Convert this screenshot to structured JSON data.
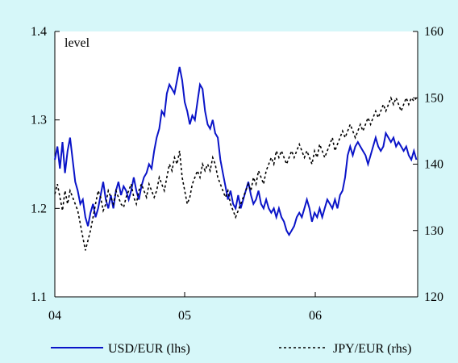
{
  "chart_data": {
    "type": "line",
    "unit_label": "level",
    "x_ticks": [
      "04",
      "05",
      "06"
    ],
    "y_left": {
      "min": 1.1,
      "max": 1.4,
      "ticks": [
        "1.1",
        "1.2",
        "1.3",
        "1.4"
      ]
    },
    "y_right": {
      "min": 120,
      "max": 160,
      "ticks": [
        "120",
        "130",
        "140",
        "150",
        "160"
      ]
    },
    "x_range": [
      2004.0,
      2006.85
    ],
    "grid": false,
    "legend_position": "bottom",
    "colors": {
      "background": "#d6f7f9",
      "plot": "#ffffff",
      "usd": "#0a14c8",
      "jpy": "#000000"
    },
    "series": [
      {
        "name": "USD/EUR (lhs)",
        "axis": "left",
        "style": "solid",
        "points": [
          [
            2004.0,
            1.255
          ],
          [
            2004.02,
            1.27
          ],
          [
            2004.04,
            1.245
          ],
          [
            2004.06,
            1.275
          ],
          [
            2004.08,
            1.24
          ],
          [
            2004.1,
            1.265
          ],
          [
            2004.12,
            1.28
          ],
          [
            2004.14,
            1.255
          ],
          [
            2004.16,
            1.23
          ],
          [
            2004.18,
            1.22
          ],
          [
            2004.2,
            1.205
          ],
          [
            2004.22,
            1.21
          ],
          [
            2004.24,
            1.19
          ],
          [
            2004.26,
            1.18
          ],
          [
            2004.28,
            1.195
          ],
          [
            2004.3,
            1.205
          ],
          [
            2004.32,
            1.19
          ],
          [
            2004.34,
            1.2
          ],
          [
            2004.36,
            1.215
          ],
          [
            2004.38,
            1.23
          ],
          [
            2004.4,
            1.21
          ],
          [
            2004.42,
            1.2
          ],
          [
            2004.44,
            1.215
          ],
          [
            2004.46,
            1.2
          ],
          [
            2004.48,
            1.22
          ],
          [
            2004.5,
            1.23
          ],
          [
            2004.52,
            1.215
          ],
          [
            2004.54,
            1.225
          ],
          [
            2004.56,
            1.22
          ],
          [
            2004.58,
            1.21
          ],
          [
            2004.6,
            1.22
          ],
          [
            2004.62,
            1.235
          ],
          [
            2004.64,
            1.22
          ],
          [
            2004.66,
            1.21
          ],
          [
            2004.68,
            1.225
          ],
          [
            2004.7,
            1.235
          ],
          [
            2004.72,
            1.24
          ],
          [
            2004.74,
            1.25
          ],
          [
            2004.76,
            1.245
          ],
          [
            2004.78,
            1.265
          ],
          [
            2004.8,
            1.28
          ],
          [
            2004.82,
            1.29
          ],
          [
            2004.84,
            1.31
          ],
          [
            2004.86,
            1.305
          ],
          [
            2004.88,
            1.33
          ],
          [
            2004.9,
            1.34
          ],
          [
            2004.92,
            1.335
          ],
          [
            2004.94,
            1.33
          ],
          [
            2004.96,
            1.345
          ],
          [
            2004.98,
            1.36
          ],
          [
            2005.0,
            1.345
          ],
          [
            2005.02,
            1.32
          ],
          [
            2005.04,
            1.31
          ],
          [
            2005.06,
            1.295
          ],
          [
            2005.08,
            1.305
          ],
          [
            2005.1,
            1.3
          ],
          [
            2005.12,
            1.32
          ],
          [
            2005.14,
            1.34
          ],
          [
            2005.16,
            1.335
          ],
          [
            2005.18,
            1.31
          ],
          [
            2005.2,
            1.295
          ],
          [
            2005.22,
            1.29
          ],
          [
            2005.24,
            1.3
          ],
          [
            2005.26,
            1.285
          ],
          [
            2005.28,
            1.28
          ],
          [
            2005.3,
            1.255
          ],
          [
            2005.32,
            1.24
          ],
          [
            2005.34,
            1.225
          ],
          [
            2005.36,
            1.21
          ],
          [
            2005.38,
            1.22
          ],
          [
            2005.4,
            1.205
          ],
          [
            2005.42,
            1.2
          ],
          [
            2005.44,
            1.215
          ],
          [
            2005.46,
            1.2
          ],
          [
            2005.48,
            1.21
          ],
          [
            2005.5,
            1.22
          ],
          [
            2005.52,
            1.23
          ],
          [
            2005.54,
            1.215
          ],
          [
            2005.56,
            1.205
          ],
          [
            2005.58,
            1.21
          ],
          [
            2005.6,
            1.22
          ],
          [
            2005.62,
            1.205
          ],
          [
            2005.64,
            1.2
          ],
          [
            2005.66,
            1.21
          ],
          [
            2005.68,
            1.2
          ],
          [
            2005.7,
            1.195
          ],
          [
            2005.72,
            1.2
          ],
          [
            2005.74,
            1.19
          ],
          [
            2005.76,
            1.2
          ],
          [
            2005.78,
            1.19
          ],
          [
            2005.8,
            1.185
          ],
          [
            2005.82,
            1.175
          ],
          [
            2005.84,
            1.17
          ],
          [
            2005.86,
            1.175
          ],
          [
            2005.88,
            1.18
          ],
          [
            2005.9,
            1.19
          ],
          [
            2005.92,
            1.195
          ],
          [
            2005.94,
            1.19
          ],
          [
            2005.96,
            1.2
          ],
          [
            2005.98,
            1.21
          ],
          [
            2006.0,
            1.2
          ],
          [
            2006.02,
            1.185
          ],
          [
            2006.04,
            1.195
          ],
          [
            2006.06,
            1.19
          ],
          [
            2006.08,
            1.2
          ],
          [
            2006.1,
            1.19
          ],
          [
            2006.12,
            1.2
          ],
          [
            2006.14,
            1.21
          ],
          [
            2006.16,
            1.205
          ],
          [
            2006.18,
            1.2
          ],
          [
            2006.2,
            1.21
          ],
          [
            2006.22,
            1.2
          ],
          [
            2006.24,
            1.215
          ],
          [
            2006.26,
            1.22
          ],
          [
            2006.28,
            1.235
          ],
          [
            2006.3,
            1.26
          ],
          [
            2006.32,
            1.27
          ],
          [
            2006.34,
            1.26
          ],
          [
            2006.36,
            1.27
          ],
          [
            2006.38,
            1.275
          ],
          [
            2006.4,
            1.27
          ],
          [
            2006.42,
            1.265
          ],
          [
            2006.44,
            1.26
          ],
          [
            2006.46,
            1.25
          ],
          [
            2006.48,
            1.26
          ],
          [
            2006.5,
            1.27
          ],
          [
            2006.52,
            1.28
          ],
          [
            2006.54,
            1.27
          ],
          [
            2006.56,
            1.265
          ],
          [
            2006.58,
            1.27
          ],
          [
            2006.6,
            1.285
          ],
          [
            2006.62,
            1.28
          ],
          [
            2006.64,
            1.275
          ],
          [
            2006.66,
            1.28
          ],
          [
            2006.68,
            1.27
          ],
          [
            2006.7,
            1.275
          ],
          [
            2006.72,
            1.27
          ],
          [
            2006.74,
            1.265
          ],
          [
            2006.76,
            1.27
          ],
          [
            2006.78,
            1.26
          ],
          [
            2006.8,
            1.255
          ],
          [
            2006.82,
            1.265
          ],
          [
            2006.84,
            1.255
          ]
        ]
      },
      {
        "name": "JPY/EUR (rhs)",
        "axis": "right",
        "style": "dotted",
        "points": [
          [
            2004.0,
            135.5
          ],
          [
            2004.02,
            137
          ],
          [
            2004.04,
            135
          ],
          [
            2004.06,
            133
          ],
          [
            2004.08,
            136
          ],
          [
            2004.1,
            134
          ],
          [
            2004.12,
            136
          ],
          [
            2004.14,
            135
          ],
          [
            2004.16,
            134
          ],
          [
            2004.18,
            133
          ],
          [
            2004.2,
            131
          ],
          [
            2004.22,
            129
          ],
          [
            2004.24,
            127
          ],
          [
            2004.26,
            128.5
          ],
          [
            2004.28,
            130
          ],
          [
            2004.3,
            132
          ],
          [
            2004.32,
            134
          ],
          [
            2004.34,
            136
          ],
          [
            2004.36,
            135
          ],
          [
            2004.38,
            133
          ],
          [
            2004.4,
            134
          ],
          [
            2004.42,
            136
          ],
          [
            2004.44,
            135
          ],
          [
            2004.46,
            134
          ],
          [
            2004.48,
            136
          ],
          [
            2004.5,
            135
          ],
          [
            2004.52,
            134
          ],
          [
            2004.54,
            133.5
          ],
          [
            2004.56,
            135
          ],
          [
            2004.58,
            136
          ],
          [
            2004.6,
            137
          ],
          [
            2004.62,
            135
          ],
          [
            2004.64,
            134
          ],
          [
            2004.66,
            136
          ],
          [
            2004.68,
            137
          ],
          [
            2004.7,
            136
          ],
          [
            2004.72,
            135
          ],
          [
            2004.74,
            137
          ],
          [
            2004.76,
            136
          ],
          [
            2004.78,
            135
          ],
          [
            2004.8,
            136
          ],
          [
            2004.82,
            138
          ],
          [
            2004.84,
            137
          ],
          [
            2004.86,
            136
          ],
          [
            2004.88,
            138
          ],
          [
            2004.9,
            140
          ],
          [
            2004.92,
            139
          ],
          [
            2004.94,
            141
          ],
          [
            2004.96,
            140
          ],
          [
            2004.98,
            142
          ],
          [
            2005.0,
            138
          ],
          [
            2005.02,
            136
          ],
          [
            2005.04,
            134
          ],
          [
            2005.06,
            135
          ],
          [
            2005.08,
            137
          ],
          [
            2005.1,
            138
          ],
          [
            2005.12,
            139
          ],
          [
            2005.14,
            138
          ],
          [
            2005.16,
            140
          ],
          [
            2005.18,
            139
          ],
          [
            2005.2,
            140
          ],
          [
            2005.22,
            139
          ],
          [
            2005.24,
            141
          ],
          [
            2005.26,
            140
          ],
          [
            2005.28,
            138
          ],
          [
            2005.3,
            137
          ],
          [
            2005.32,
            136
          ],
          [
            2005.34,
            135
          ],
          [
            2005.36,
            136
          ],
          [
            2005.38,
            134
          ],
          [
            2005.4,
            133
          ],
          [
            2005.42,
            132
          ],
          [
            2005.44,
            133
          ],
          [
            2005.46,
            134
          ],
          [
            2005.48,
            135
          ],
          [
            2005.5,
            136
          ],
          [
            2005.52,
            137
          ],
          [
            2005.54,
            136
          ],
          [
            2005.56,
            138
          ],
          [
            2005.58,
            137
          ],
          [
            2005.6,
            139
          ],
          [
            2005.62,
            138
          ],
          [
            2005.64,
            137
          ],
          [
            2005.66,
            139
          ],
          [
            2005.68,
            140
          ],
          [
            2005.7,
            141
          ],
          [
            2005.72,
            140
          ],
          [
            2005.74,
            142
          ],
          [
            2005.76,
            141
          ],
          [
            2005.78,
            142
          ],
          [
            2005.8,
            141
          ],
          [
            2005.82,
            140
          ],
          [
            2005.84,
            141
          ],
          [
            2005.86,
            142
          ],
          [
            2005.88,
            141
          ],
          [
            2005.9,
            142
          ],
          [
            2005.92,
            143
          ],
          [
            2005.94,
            142
          ],
          [
            2005.96,
            141
          ],
          [
            2005.98,
            142
          ],
          [
            2006.0,
            141
          ],
          [
            2006.02,
            140
          ],
          [
            2006.04,
            142
          ],
          [
            2006.06,
            141
          ],
          [
            2006.08,
            143
          ],
          [
            2006.1,
            142
          ],
          [
            2006.12,
            141
          ],
          [
            2006.14,
            142
          ],
          [
            2006.16,
            143
          ],
          [
            2006.18,
            144
          ],
          [
            2006.2,
            142
          ],
          [
            2006.22,
            143
          ],
          [
            2006.24,
            144
          ],
          [
            2006.26,
            145
          ],
          [
            2006.28,
            144
          ],
          [
            2006.3,
            145
          ],
          [
            2006.32,
            146
          ],
          [
            2006.34,
            145
          ],
          [
            2006.36,
            144
          ],
          [
            2006.38,
            145
          ],
          [
            2006.4,
            146
          ],
          [
            2006.42,
            145
          ],
          [
            2006.44,
            146
          ],
          [
            2006.46,
            147
          ],
          [
            2006.48,
            146
          ],
          [
            2006.5,
            147
          ],
          [
            2006.52,
            148
          ],
          [
            2006.54,
            147
          ],
          [
            2006.56,
            148
          ],
          [
            2006.58,
            149
          ],
          [
            2006.6,
            148
          ],
          [
            2006.62,
            149
          ],
          [
            2006.64,
            150
          ],
          [
            2006.66,
            149
          ],
          [
            2006.68,
            150
          ],
          [
            2006.7,
            149
          ],
          [
            2006.72,
            148
          ],
          [
            2006.74,
            149
          ],
          [
            2006.76,
            150
          ],
          [
            2006.78,
            149
          ],
          [
            2006.8,
            150
          ],
          [
            2006.82,
            149.5
          ],
          [
            2006.84,
            150
          ]
        ]
      }
    ]
  }
}
